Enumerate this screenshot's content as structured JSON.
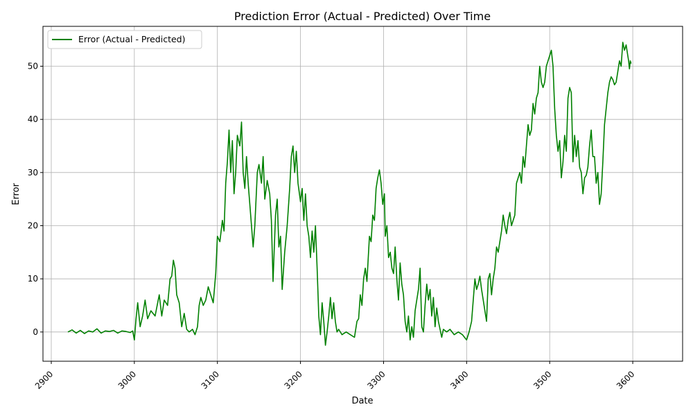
{
  "chart_data": {
    "type": "line",
    "title": "Prediction Error (Actual - Predicted) Over Time",
    "xlabel": "Date",
    "ylabel": "Error",
    "xlim": [
      2890,
      3660
    ],
    "ylim": [
      -5.5,
      57.5
    ],
    "x_ticks": [
      2900,
      3000,
      3100,
      3200,
      3300,
      3400,
      3500,
      3600
    ],
    "x_tick_labels": [
      "2900",
      "3000",
      "3100",
      "3200",
      "3300",
      "3400",
      "3500",
      "3600"
    ],
    "y_ticks": [
      0,
      10,
      20,
      30,
      40,
      50
    ],
    "y_tick_labels": [
      "0",
      "10",
      "20",
      "30",
      "40",
      "50"
    ],
    "grid": true,
    "legend_position": "top-left",
    "series": [
      {
        "name": "Error (Actual - Predicted)",
        "color": "#008000",
        "points": [
          [
            2920,
            0
          ],
          [
            2925,
            0.4
          ],
          [
            2930,
            -0.2
          ],
          [
            2935,
            0.3
          ],
          [
            2940,
            -0.3
          ],
          [
            2945,
            0.2
          ],
          [
            2950,
            0
          ],
          [
            2955,
            0.6
          ],
          [
            2960,
            -0.2
          ],
          [
            2965,
            0.2
          ],
          [
            2970,
            0.1
          ],
          [
            2975,
            0.3
          ],
          [
            2980,
            -0.2
          ],
          [
            2985,
            0.2
          ],
          [
            2990,
            0.1
          ],
          [
            2995,
            -0.1
          ],
          [
            2998,
            0.2
          ],
          [
            3000,
            -1.5
          ],
          [
            3002,
            2.5
          ],
          [
            3004,
            5.5
          ],
          [
            3007,
            1
          ],
          [
            3010,
            3
          ],
          [
            3013,
            6
          ],
          [
            3016,
            2.5
          ],
          [
            3020,
            4
          ],
          [
            3025,
            3
          ],
          [
            3030,
            7
          ],
          [
            3033,
            3
          ],
          [
            3036,
            6
          ],
          [
            3040,
            5
          ],
          [
            3043,
            10
          ],
          [
            3045,
            10.5
          ],
          [
            3047,
            13.5
          ],
          [
            3049,
            12
          ],
          [
            3051,
            7
          ],
          [
            3054,
            5.5
          ],
          [
            3057,
            1
          ],
          [
            3060,
            3.5
          ],
          [
            3063,
            0.5
          ],
          [
            3066,
            0
          ],
          [
            3070,
            0.5
          ],
          [
            3073,
            -0.5
          ],
          [
            3076,
            1
          ],
          [
            3078,
            5
          ],
          [
            3080,
            6.5
          ],
          [
            3083,
            5
          ],
          [
            3086,
            6
          ],
          [
            3089,
            8.5
          ],
          [
            3092,
            7
          ],
          [
            3095,
            5.5
          ],
          [
            3098,
            11
          ],
          [
            3100,
            18
          ],
          [
            3103,
            17
          ],
          [
            3106,
            21
          ],
          [
            3108,
            19
          ],
          [
            3110,
            28
          ],
          [
            3112,
            32
          ],
          [
            3114,
            38
          ],
          [
            3116,
            30
          ],
          [
            3118,
            36
          ],
          [
            3120,
            26
          ],
          [
            3122,
            30
          ],
          [
            3124,
            37
          ],
          [
            3127,
            35
          ],
          [
            3129,
            39.5
          ],
          [
            3131,
            30
          ],
          [
            3133,
            27
          ],
          [
            3135,
            33
          ],
          [
            3137,
            28
          ],
          [
            3140,
            22
          ],
          [
            3143,
            16
          ],
          [
            3145,
            20
          ],
          [
            3148,
            30
          ],
          [
            3150,
            31.5
          ],
          [
            3153,
            28
          ],
          [
            3155,
            33
          ],
          [
            3157,
            25
          ],
          [
            3160,
            28.5
          ],
          [
            3163,
            26
          ],
          [
            3165,
            21
          ],
          [
            3167,
            9.5
          ],
          [
            3170,
            22
          ],
          [
            3172,
            25
          ],
          [
            3174,
            16
          ],
          [
            3176,
            18
          ],
          [
            3178,
            8
          ],
          [
            3181,
            15
          ],
          [
            3184,
            20
          ],
          [
            3187,
            27
          ],
          [
            3189,
            33
          ],
          [
            3191,
            35
          ],
          [
            3193,
            30
          ],
          [
            3195,
            34
          ],
          [
            3197,
            28
          ],
          [
            3200,
            24.5
          ],
          [
            3202,
            27
          ],
          [
            3204,
            21
          ],
          [
            3206,
            26
          ],
          [
            3208,
            20
          ],
          [
            3210,
            18
          ],
          [
            3212,
            14
          ],
          [
            3214,
            19
          ],
          [
            3216,
            15
          ],
          [
            3218,
            20
          ],
          [
            3220,
            12
          ],
          [
            3222,
            3
          ],
          [
            3224,
            -0.5
          ],
          [
            3226,
            5.5
          ],
          [
            3228,
            2
          ],
          [
            3230,
            -2.5
          ],
          [
            3232,
            0
          ],
          [
            3234,
            3
          ],
          [
            3236,
            6.5
          ],
          [
            3238,
            2.5
          ],
          [
            3240,
            5.5
          ],
          [
            3242,
            2
          ],
          [
            3244,
            0
          ],
          [
            3246,
            0.5
          ],
          [
            3250,
            -0.5
          ],
          [
            3255,
            0
          ],
          [
            3260,
            -0.5
          ],
          [
            3265,
            -1
          ],
          [
            3268,
            2
          ],
          [
            3270,
            2.5
          ],
          [
            3272,
            7
          ],
          [
            3274,
            5
          ],
          [
            3276,
            10
          ],
          [
            3278,
            12
          ],
          [
            3280,
            9.5
          ],
          [
            3283,
            18
          ],
          [
            3285,
            17
          ],
          [
            3287,
            22
          ],
          [
            3289,
            21
          ],
          [
            3291,
            27
          ],
          [
            3293,
            29
          ],
          [
            3295,
            30.5
          ],
          [
            3297,
            28
          ],
          [
            3299,
            24
          ],
          [
            3301,
            26
          ],
          [
            3302,
            18
          ],
          [
            3304,
            20
          ],
          [
            3306,
            14
          ],
          [
            3308,
            15
          ],
          [
            3310,
            12
          ],
          [
            3312,
            11
          ],
          [
            3314,
            16
          ],
          [
            3316,
            10
          ],
          [
            3318,
            6
          ],
          [
            3320,
            13
          ],
          [
            3322,
            9
          ],
          [
            3324,
            7
          ],
          [
            3326,
            2
          ],
          [
            3328,
            0
          ],
          [
            3330,
            3
          ],
          [
            3332,
            -1.5
          ],
          [
            3334,
            1
          ],
          [
            3336,
            -1
          ],
          [
            3338,
            4
          ],
          [
            3340,
            6
          ],
          [
            3342,
            8
          ],
          [
            3344,
            12
          ],
          [
            3346,
            1
          ],
          [
            3348,
            0
          ],
          [
            3350,
            5
          ],
          [
            3352,
            9
          ],
          [
            3354,
            6
          ],
          [
            3356,
            8
          ],
          [
            3358,
            3
          ],
          [
            3360,
            6.5
          ],
          [
            3362,
            1
          ],
          [
            3364,
            4.5
          ],
          [
            3366,
            2
          ],
          [
            3368,
            0.5
          ],
          [
            3370,
            -1
          ],
          [
            3372,
            0.5
          ],
          [
            3376,
            0
          ],
          [
            3380,
            0.5
          ],
          [
            3385,
            -0.5
          ],
          [
            3390,
            0
          ],
          [
            3395,
            -0.5
          ],
          [
            3400,
            -1.5
          ],
          [
            3403,
            0
          ],
          [
            3406,
            2
          ],
          [
            3408,
            6
          ],
          [
            3410,
            10
          ],
          [
            3412,
            8
          ],
          [
            3414,
            9
          ],
          [
            3416,
            10.5
          ],
          [
            3418,
            8
          ],
          [
            3420,
            6
          ],
          [
            3422,
            4
          ],
          [
            3424,
            2
          ],
          [
            3426,
            10
          ],
          [
            3428,
            11
          ],
          [
            3430,
            7
          ],
          [
            3432,
            10
          ],
          [
            3434,
            12
          ],
          [
            3436,
            16
          ],
          [
            3438,
            15
          ],
          [
            3440,
            17
          ],
          [
            3442,
            19
          ],
          [
            3444,
            22
          ],
          [
            3446,
            20
          ],
          [
            3448,
            18.5
          ],
          [
            3450,
            21
          ],
          [
            3452,
            22.5
          ],
          [
            3454,
            20
          ],
          [
            3456,
            21
          ],
          [
            3458,
            22
          ],
          [
            3460,
            28
          ],
          [
            3462,
            29
          ],
          [
            3464,
            30
          ],
          [
            3466,
            28
          ],
          [
            3468,
            33
          ],
          [
            3470,
            31
          ],
          [
            3472,
            35
          ],
          [
            3474,
            39
          ],
          [
            3476,
            37
          ],
          [
            3478,
            38
          ],
          [
            3480,
            43
          ],
          [
            3482,
            41
          ],
          [
            3484,
            44
          ],
          [
            3486,
            45
          ],
          [
            3488,
            50
          ],
          [
            3490,
            47
          ],
          [
            3492,
            46
          ],
          [
            3494,
            47
          ],
          [
            3496,
            50
          ],
          [
            3498,
            51
          ],
          [
            3500,
            52
          ],
          [
            3502,
            53
          ],
          [
            3504,
            50
          ],
          [
            3506,
            42
          ],
          [
            3508,
            37
          ],
          [
            3510,
            34
          ],
          [
            3512,
            36
          ],
          [
            3514,
            29
          ],
          [
            3516,
            32
          ],
          [
            3518,
            37
          ],
          [
            3520,
            34
          ],
          [
            3522,
            44
          ],
          [
            3524,
            46
          ],
          [
            3526,
            45
          ],
          [
            3528,
            32
          ],
          [
            3530,
            37
          ],
          [
            3532,
            33
          ],
          [
            3534,
            36
          ],
          [
            3536,
            31
          ],
          [
            3538,
            30
          ],
          [
            3540,
            26
          ],
          [
            3542,
            29
          ],
          [
            3544,
            29.5
          ],
          [
            3546,
            31
          ],
          [
            3548,
            35
          ],
          [
            3550,
            38
          ],
          [
            3552,
            33
          ],
          [
            3554,
            33
          ],
          [
            3556,
            28
          ],
          [
            3558,
            30
          ],
          [
            3560,
            24
          ],
          [
            3562,
            26
          ],
          [
            3564,
            32
          ],
          [
            3566,
            39
          ],
          [
            3568,
            42
          ],
          [
            3570,
            45
          ],
          [
            3572,
            47
          ],
          [
            3574,
            48
          ],
          [
            3576,
            47.5
          ],
          [
            3578,
            46.5
          ],
          [
            3580,
            47
          ],
          [
            3582,
            49
          ],
          [
            3584,
            51
          ],
          [
            3586,
            50
          ],
          [
            3588,
            54.5
          ],
          [
            3590,
            53
          ],
          [
            3592,
            54
          ],
          [
            3594,
            52
          ],
          [
            3595,
            51
          ],
          [
            3596,
            49.5
          ],
          [
            3597,
            51
          ],
          [
            3598,
            50.5
          ]
        ]
      }
    ]
  }
}
